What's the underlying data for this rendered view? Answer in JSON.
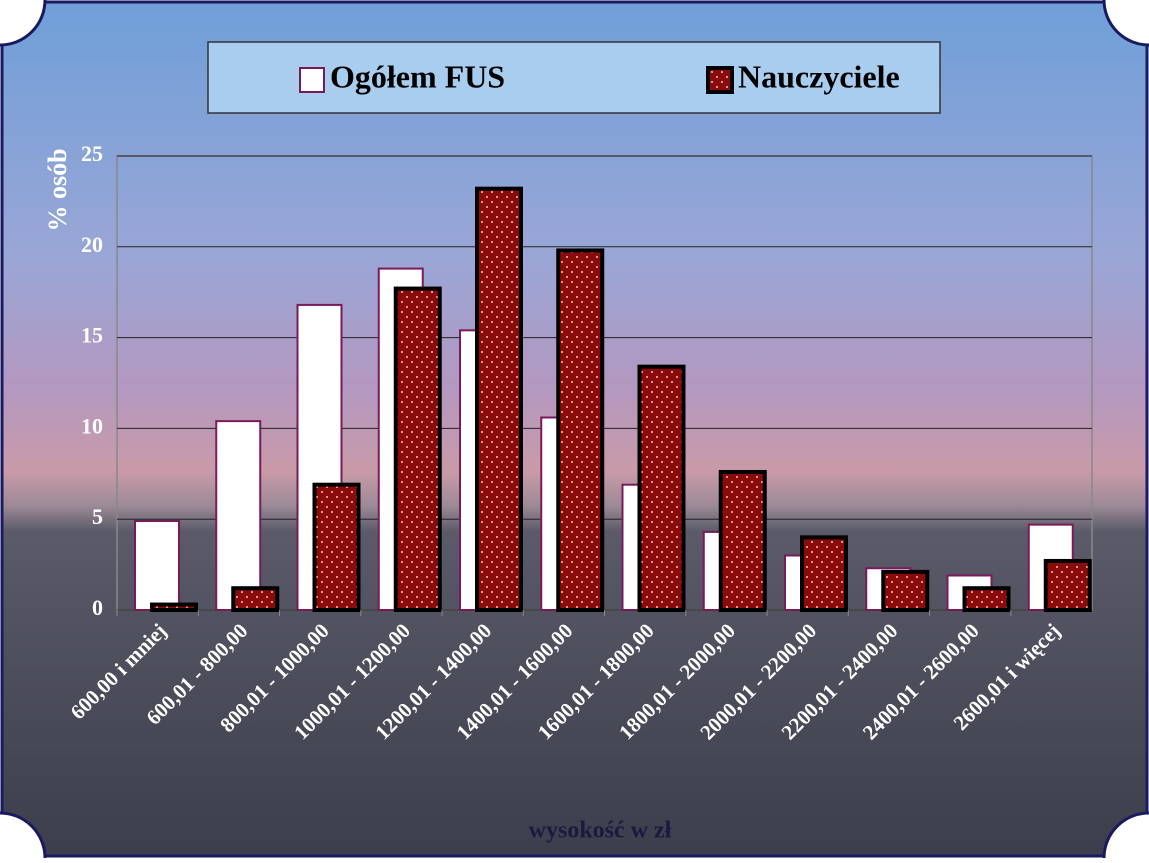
{
  "chart_data": {
    "type": "bar",
    "y_label": "% osób",
    "x_label": "wysokość w zł",
    "categories": [
      "600,00 i mniej",
      "600,01 - 800,00",
      "800,01 - 1000,00",
      "1000,01 - 1200,00",
      "1200,01 - 1400,00",
      "1400,01 - 1600,00",
      "1600,01 - 1800,00",
      "1800,01 - 2000,00",
      "2000,01 - 2200,00",
      "2200,01 - 2400,00",
      "2400,01 - 2600,00",
      "2600,01 i więcej"
    ],
    "series": [
      {
        "name": "Ogółem FUS",
        "color": "#ffffff",
        "values": [
          4.9,
          10.4,
          16.8,
          18.8,
          15.4,
          10.6,
          6.9,
          4.3,
          3.0,
          2.3,
          1.9,
          4.7
        ]
      },
      {
        "name": "Nauczyciele",
        "color": "#8b0a0a",
        "values": [
          0.3,
          1.2,
          6.9,
          17.7,
          23.2,
          19.8,
          13.4,
          7.6,
          4.0,
          2.1,
          1.2,
          2.7
        ]
      }
    ],
    "ylim": [
      0,
      25
    ],
    "yticks": [
      0,
      5,
      10,
      15,
      20,
      25
    ],
    "grid": true,
    "legend": "top"
  }
}
